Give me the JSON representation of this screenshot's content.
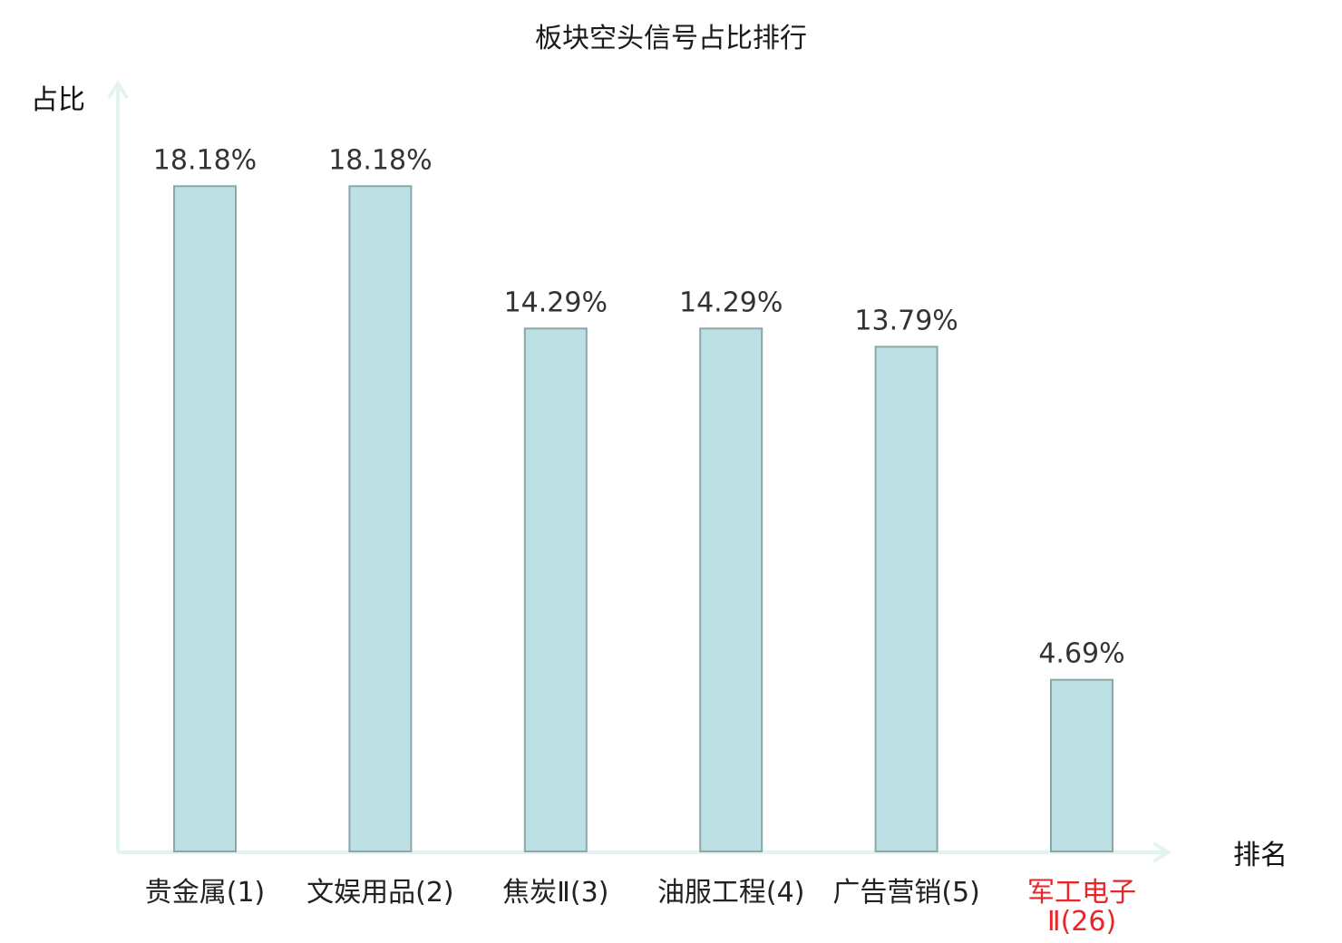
{
  "chart_data": {
    "type": "bar",
    "title": "板块空头信号占比排行",
    "ylabel": "占比",
    "xlabel": "排名",
    "categories": [
      {
        "name": "贵金属",
        "rank": "(1)"
      },
      {
        "name": "文娱用品",
        "rank": "(2)"
      },
      {
        "name": "焦炭Ⅱ",
        "rank": "(3)"
      },
      {
        "name": "油服工程",
        "rank": "(4)"
      },
      {
        "name": "广告营销",
        "rank": "(5)"
      },
      {
        "name": "军工电子",
        "rank": "Ⅱ(26)",
        "highlight": true
      }
    ],
    "values": [
      18.18,
      18.18,
      14.29,
      14.29,
      13.79,
      4.69
    ],
    "value_labels": [
      "18.18%",
      "18.18%",
      "14.29%",
      "14.29%",
      "13.79%",
      "4.69%"
    ],
    "ylim": [
      0,
      20
    ],
    "grid": false,
    "colors": {
      "bar_fill": "#bce0e3",
      "bar_stroke": "#8aa7a9",
      "axis": "#e3f3f1",
      "highlight_label": "#e8262a",
      "normal_label": "#222222",
      "value_label": "#333333"
    }
  }
}
